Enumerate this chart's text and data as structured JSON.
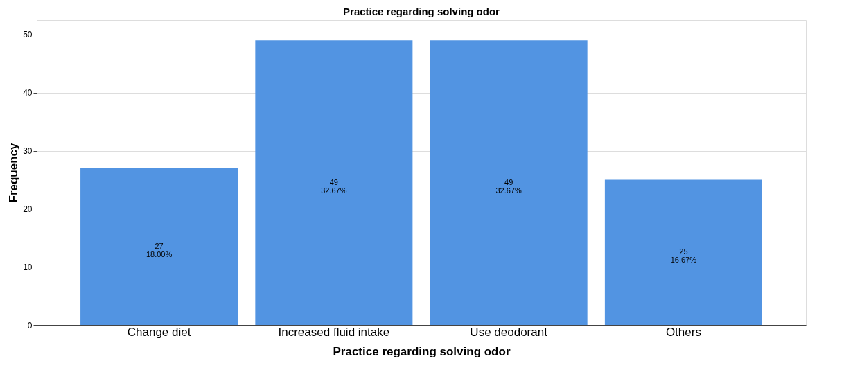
{
  "chart_data": {
    "type": "bar",
    "title": "Practice regarding solving odor",
    "xlabel": "Practice regarding solving odor",
    "ylabel": "Frequency",
    "categories": [
      "Change diet",
      "Increased fluid intake",
      "Use deodorant",
      "Others"
    ],
    "values": [
      27,
      49,
      49,
      25
    ],
    "color": "#5294e2",
    "value_labels": [
      "27\n18.00%",
      "49\n32.67%",
      "49\n32.67%",
      "25\n16.67%"
    ],
    "ylim": [
      0,
      52.5
    ],
    "yticks": [
      0,
      10,
      20,
      30,
      40,
      50
    ],
    "grid": "y"
  }
}
